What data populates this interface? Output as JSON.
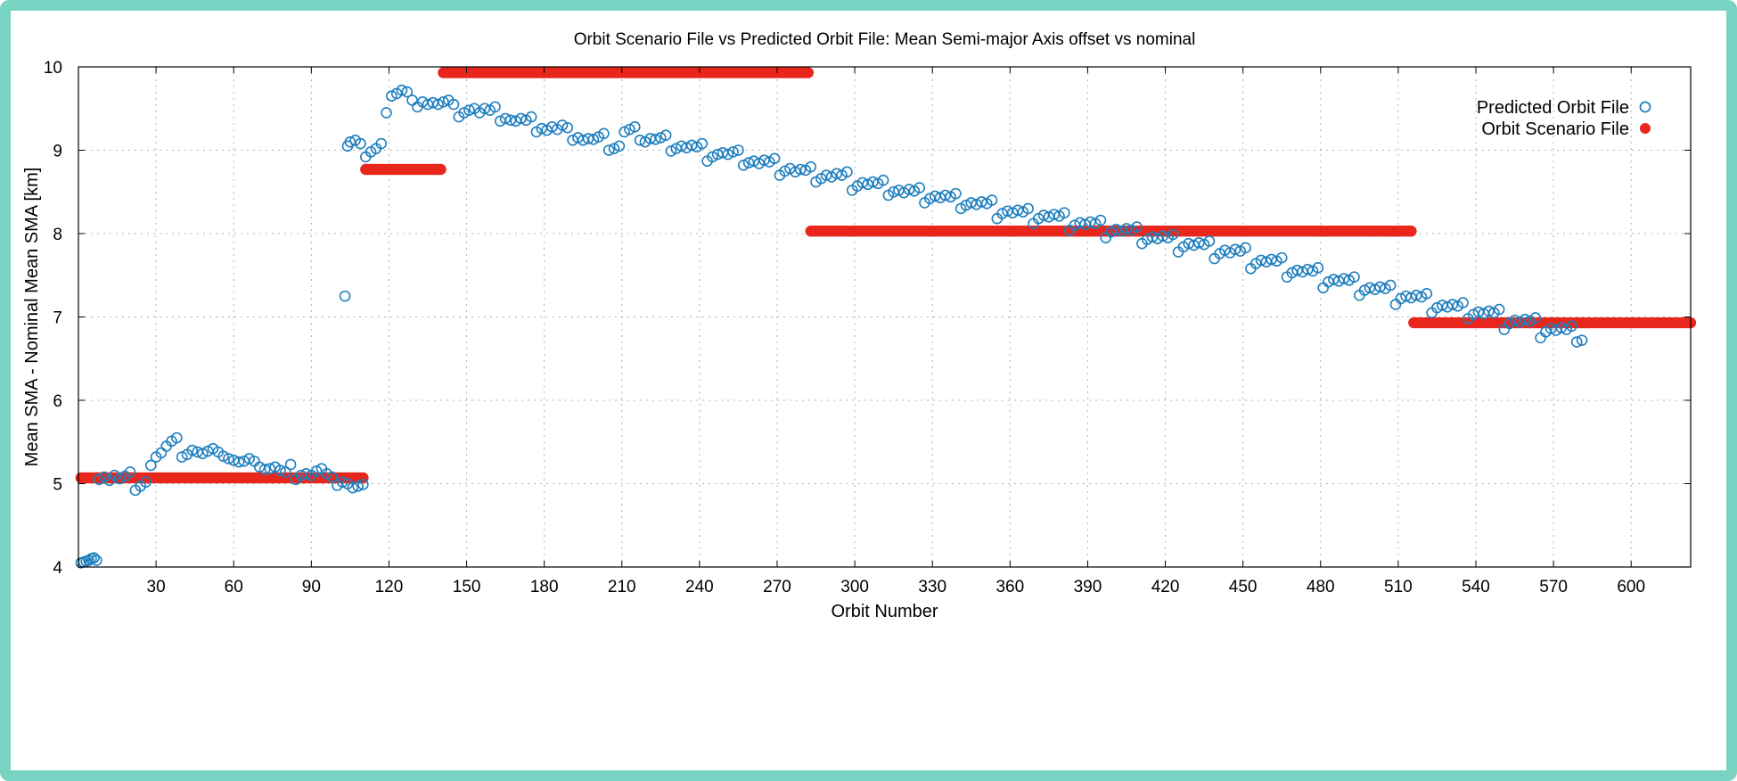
{
  "colors": {
    "frame": "#79d3c3",
    "predicted": "#1f7fbf",
    "scenario": "#e8261c",
    "grid": "#b0b0b0"
  },
  "chart_data": {
    "type": "scatter",
    "title": "Orbit Scenario File vs Predicted Orbit File: Mean Semi-major Axis offset vs nominal",
    "xlabel": "Orbit Number",
    "ylabel": "Mean SMA - Nominal Mean SMA [km]",
    "xlim": [
      0,
      623
    ],
    "ylim": [
      4,
      10
    ],
    "xticks": [
      30,
      60,
      90,
      120,
      150,
      180,
      210,
      240,
      270,
      300,
      330,
      360,
      390,
      420,
      450,
      480,
      510,
      540,
      570,
      600
    ],
    "yticks": [
      4,
      5,
      6,
      7,
      8,
      9,
      10
    ],
    "grid": true,
    "legend_position": "top-right",
    "series": [
      {
        "name": "Predicted Orbit File",
        "marker": "open-circle",
        "points": [
          [
            1,
            4.05
          ],
          [
            2,
            4.06
          ],
          [
            3,
            4.07
          ],
          [
            4,
            4.08
          ],
          [
            5,
            4.1
          ],
          [
            6,
            4.11
          ],
          [
            7,
            4.08
          ],
          [
            8,
            5.05
          ],
          [
            10,
            5.08
          ],
          [
            12,
            5.04
          ],
          [
            14,
            5.1
          ],
          [
            16,
            5.06
          ],
          [
            18,
            5.09
          ],
          [
            20,
            5.14
          ],
          [
            22,
            4.92
          ],
          [
            24,
            4.97
          ],
          [
            26,
            5.02
          ],
          [
            28,
            5.22
          ],
          [
            30,
            5.32
          ],
          [
            32,
            5.37
          ],
          [
            34,
            5.45
          ],
          [
            36,
            5.51
          ],
          [
            38,
            5.55
          ],
          [
            40,
            5.32
          ],
          [
            42,
            5.35
          ],
          [
            44,
            5.4
          ],
          [
            46,
            5.38
          ],
          [
            48,
            5.36
          ],
          [
            50,
            5.39
          ],
          [
            52,
            5.42
          ],
          [
            54,
            5.38
          ],
          [
            56,
            5.33
          ],
          [
            58,
            5.3
          ],
          [
            60,
            5.28
          ],
          [
            62,
            5.26
          ],
          [
            64,
            5.27
          ],
          [
            66,
            5.3
          ],
          [
            68,
            5.27
          ],
          [
            70,
            5.2
          ],
          [
            72,
            5.17
          ],
          [
            74,
            5.18
          ],
          [
            76,
            5.2
          ],
          [
            78,
            5.16
          ],
          [
            80,
            5.14
          ],
          [
            82,
            5.23
          ],
          [
            84,
            5.05
          ],
          [
            86,
            5.1
          ],
          [
            88,
            5.12
          ],
          [
            90,
            5.1
          ],
          [
            92,
            5.15
          ],
          [
            94,
            5.18
          ],
          [
            96,
            5.12
          ],
          [
            98,
            5.08
          ],
          [
            100,
            4.98
          ],
          [
            102,
            5.02
          ],
          [
            104,
            5.0
          ],
          [
            106,
            4.95
          ],
          [
            108,
            4.97
          ],
          [
            110,
            4.99
          ],
          [
            103,
            7.25
          ],
          [
            104,
            9.05
          ],
          [
            105,
            9.1
          ],
          [
            107,
            9.12
          ],
          [
            109,
            9.08
          ],
          [
            111,
            8.92
          ],
          [
            113,
            8.98
          ],
          [
            115,
            9.02
          ],
          [
            117,
            9.08
          ],
          [
            119,
            9.45
          ],
          [
            121,
            9.65
          ],
          [
            123,
            9.68
          ],
          [
            125,
            9.72
          ],
          [
            127,
            9.7
          ],
          [
            129,
            9.6
          ],
          [
            131,
            9.52
          ],
          [
            133,
            9.58
          ],
          [
            135,
            9.55
          ],
          [
            137,
            9.57
          ],
          [
            139,
            9.55
          ],
          [
            141,
            9.58
          ],
          [
            143,
            9.6
          ],
          [
            145,
            9.55
          ],
          [
            147,
            9.4
          ],
          [
            149,
            9.45
          ],
          [
            151,
            9.48
          ],
          [
            153,
            9.5
          ],
          [
            155,
            9.45
          ],
          [
            157,
            9.5
          ],
          [
            159,
            9.48
          ],
          [
            161,
            9.52
          ],
          [
            163,
            9.35
          ],
          [
            165,
            9.38
          ],
          [
            167,
            9.36
          ],
          [
            169,
            9.35
          ],
          [
            171,
            9.38
          ],
          [
            173,
            9.36
          ],
          [
            175,
            9.4
          ],
          [
            177,
            9.22
          ],
          [
            179,
            9.26
          ],
          [
            181,
            9.24
          ],
          [
            183,
            9.28
          ],
          [
            185,
            9.25
          ],
          [
            187,
            9.3
          ],
          [
            189,
            9.27
          ],
          [
            191,
            9.12
          ],
          [
            193,
            9.15
          ],
          [
            195,
            9.12
          ],
          [
            197,
            9.14
          ],
          [
            199,
            9.13
          ],
          [
            201,
            9.16
          ],
          [
            203,
            9.2
          ],
          [
            205,
            9.0
          ],
          [
            207,
            9.02
          ],
          [
            209,
            9.05
          ],
          [
            211,
            9.22
          ],
          [
            213,
            9.25
          ],
          [
            215,
            9.28
          ],
          [
            217,
            9.12
          ],
          [
            219,
            9.1
          ],
          [
            221,
            9.14
          ],
          [
            223,
            9.13
          ],
          [
            225,
            9.15
          ],
          [
            227,
            9.18
          ],
          [
            229,
            8.99
          ],
          [
            231,
            9.02
          ],
          [
            233,
            9.05
          ],
          [
            235,
            9.03
          ],
          [
            237,
            9.06
          ],
          [
            239,
            9.04
          ],
          [
            241,
            9.08
          ],
          [
            243,
            8.87
          ],
          [
            245,
            8.92
          ],
          [
            247,
            8.95
          ],
          [
            249,
            8.97
          ],
          [
            251,
            8.95
          ],
          [
            253,
            8.98
          ],
          [
            255,
            9.0
          ],
          [
            257,
            8.82
          ],
          [
            259,
            8.85
          ],
          [
            261,
            8.87
          ],
          [
            263,
            8.84
          ],
          [
            265,
            8.88
          ],
          [
            267,
            8.86
          ],
          [
            269,
            8.9
          ],
          [
            271,
            8.7
          ],
          [
            273,
            8.75
          ],
          [
            275,
            8.78
          ],
          [
            277,
            8.74
          ],
          [
            279,
            8.77
          ],
          [
            281,
            8.76
          ],
          [
            283,
            8.8
          ],
          [
            285,
            8.62
          ],
          [
            287,
            8.66
          ],
          [
            289,
            8.7
          ],
          [
            291,
            8.68
          ],
          [
            293,
            8.72
          ],
          [
            295,
            8.7
          ],
          [
            297,
            8.74
          ],
          [
            299,
            8.52
          ],
          [
            301,
            8.57
          ],
          [
            303,
            8.61
          ],
          [
            305,
            8.59
          ],
          [
            307,
            8.62
          ],
          [
            309,
            8.6
          ],
          [
            311,
            8.64
          ],
          [
            313,
            8.46
          ],
          [
            315,
            8.5
          ],
          [
            317,
            8.52
          ],
          [
            319,
            8.49
          ],
          [
            321,
            8.53
          ],
          [
            323,
            8.51
          ],
          [
            325,
            8.55
          ],
          [
            327,
            8.37
          ],
          [
            329,
            8.42
          ],
          [
            331,
            8.45
          ],
          [
            333,
            8.43
          ],
          [
            335,
            8.46
          ],
          [
            337,
            8.44
          ],
          [
            339,
            8.48
          ],
          [
            341,
            8.3
          ],
          [
            343,
            8.34
          ],
          [
            345,
            8.37
          ],
          [
            347,
            8.35
          ],
          [
            349,
            8.38
          ],
          [
            351,
            8.36
          ],
          [
            353,
            8.4
          ],
          [
            355,
            8.18
          ],
          [
            357,
            8.24
          ],
          [
            359,
            8.27
          ],
          [
            361,
            8.25
          ],
          [
            363,
            8.28
          ],
          [
            365,
            8.26
          ],
          [
            367,
            8.3
          ],
          [
            369,
            8.12
          ],
          [
            371,
            8.18
          ],
          [
            373,
            8.22
          ],
          [
            375,
            8.2
          ],
          [
            377,
            8.23
          ],
          [
            379,
            8.21
          ],
          [
            381,
            8.25
          ],
          [
            383,
            8.04
          ],
          [
            385,
            8.1
          ],
          [
            387,
            8.13
          ],
          [
            389,
            8.11
          ],
          [
            391,
            8.14
          ],
          [
            393,
            8.12
          ],
          [
            395,
            8.16
          ],
          [
            397,
            7.95
          ],
          [
            399,
            8.02
          ],
          [
            401,
            8.05
          ],
          [
            403,
            8.03
          ],
          [
            405,
            8.06
          ],
          [
            407,
            8.04
          ],
          [
            409,
            8.08
          ],
          [
            411,
            7.88
          ],
          [
            413,
            7.93
          ],
          [
            415,
            7.96
          ],
          [
            417,
            7.94
          ],
          [
            419,
            7.97
          ],
          [
            421,
            7.95
          ],
          [
            423,
            7.99
          ],
          [
            425,
            7.78
          ],
          [
            427,
            7.84
          ],
          [
            429,
            7.88
          ],
          [
            431,
            7.86
          ],
          [
            433,
            7.89
          ],
          [
            435,
            7.87
          ],
          [
            437,
            7.91
          ],
          [
            439,
            7.7
          ],
          [
            441,
            7.76
          ],
          [
            443,
            7.8
          ],
          [
            445,
            7.77
          ],
          [
            447,
            7.81
          ],
          [
            449,
            7.79
          ],
          [
            451,
            7.83
          ],
          [
            453,
            7.58
          ],
          [
            455,
            7.64
          ],
          [
            457,
            7.68
          ],
          [
            459,
            7.66
          ],
          [
            461,
            7.69
          ],
          [
            463,
            7.67
          ],
          [
            465,
            7.71
          ],
          [
            467,
            7.48
          ],
          [
            469,
            7.53
          ],
          [
            471,
            7.56
          ],
          [
            473,
            7.54
          ],
          [
            475,
            7.57
          ],
          [
            477,
            7.55
          ],
          [
            479,
            7.59
          ],
          [
            481,
            7.35
          ],
          [
            483,
            7.42
          ],
          [
            485,
            7.45
          ],
          [
            487,
            7.43
          ],
          [
            489,
            7.46
          ],
          [
            491,
            7.44
          ],
          [
            493,
            7.48
          ],
          [
            495,
            7.26
          ],
          [
            497,
            7.32
          ],
          [
            499,
            7.35
          ],
          [
            501,
            7.33
          ],
          [
            503,
            7.36
          ],
          [
            505,
            7.34
          ],
          [
            507,
            7.38
          ],
          [
            509,
            7.15
          ],
          [
            511,
            7.22
          ],
          [
            513,
            7.25
          ],
          [
            515,
            7.23
          ],
          [
            517,
            7.26
          ],
          [
            519,
            7.24
          ],
          [
            521,
            7.28
          ],
          [
            523,
            7.05
          ],
          [
            525,
            7.11
          ],
          [
            527,
            7.14
          ],
          [
            529,
            7.12
          ],
          [
            531,
            7.15
          ],
          [
            533,
            7.13
          ],
          [
            535,
            7.17
          ],
          [
            537,
            6.98
          ],
          [
            539,
            7.03
          ],
          [
            541,
            7.06
          ],
          [
            543,
            7.04
          ],
          [
            545,
            7.07
          ],
          [
            547,
            7.05
          ],
          [
            549,
            7.09
          ],
          [
            551,
            6.85
          ],
          [
            553,
            6.92
          ],
          [
            555,
            6.96
          ],
          [
            557,
            6.94
          ],
          [
            559,
            6.97
          ],
          [
            561,
            6.95
          ],
          [
            563,
            6.99
          ],
          [
            565,
            6.75
          ],
          [
            567,
            6.82
          ],
          [
            569,
            6.86
          ],
          [
            571,
            6.84
          ],
          [
            573,
            6.87
          ],
          [
            575,
            6.85
          ],
          [
            577,
            6.89
          ],
          [
            579,
            6.7
          ],
          [
            581,
            6.72
          ]
        ]
      },
      {
        "name": "Orbit Scenario File",
        "marker": "filled-circle",
        "segments": [
          {
            "x_start": 1,
            "x_end": 110,
            "y": 5.07
          },
          {
            "x_start": 111,
            "x_end": 140,
            "y": 8.77
          },
          {
            "x_start": 141,
            "x_end": 282,
            "y": 9.93
          },
          {
            "x_start": 283,
            "x_end": 515,
            "y": 8.03
          },
          {
            "x_start": 516,
            "x_end": 623,
            "y": 6.93
          }
        ]
      }
    ]
  }
}
